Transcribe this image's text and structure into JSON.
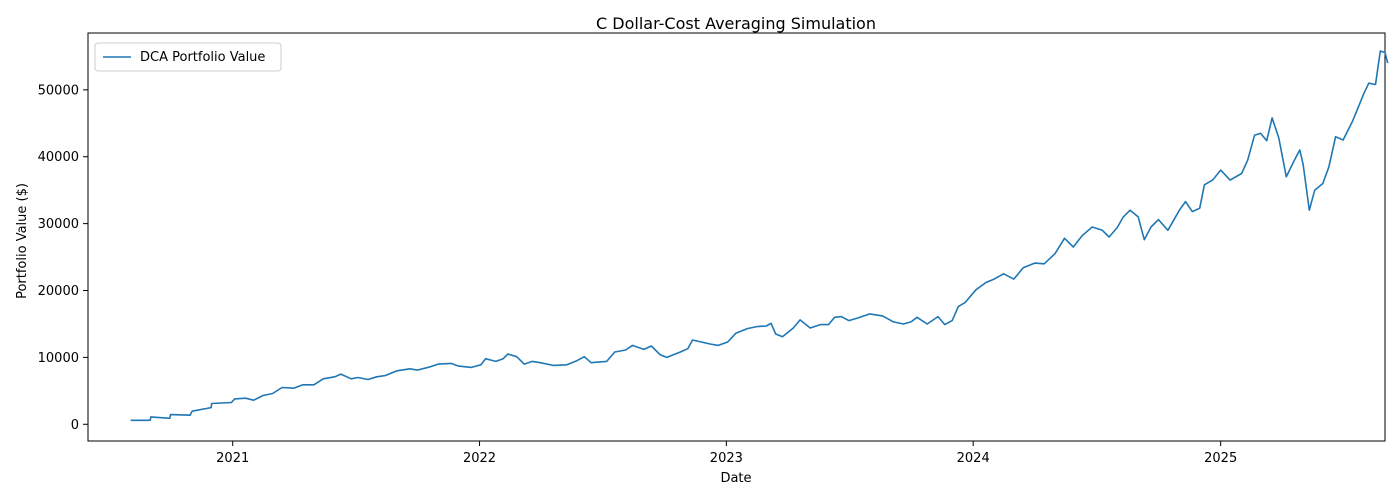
{
  "chart_data": {
    "type": "line",
    "title": "C Dollar-Cost Averaging Simulation",
    "xlabel": "Date",
    "ylabel": "Portfolio Value ($)",
    "x_type": "date",
    "xlim": [
      "2020-06-01",
      "2025-09-01"
    ],
    "ylim": [
      -2500,
      58500
    ],
    "x_ticks": [
      "2021",
      "2022",
      "2023",
      "2024",
      "2025"
    ],
    "x_tick_dates": [
      "2021-01-01",
      "2022-01-01",
      "2023-01-01",
      "2024-01-01",
      "2025-01-01"
    ],
    "y_ticks": [
      0,
      10000,
      20000,
      30000,
      40000,
      50000
    ],
    "y_tick_labels": [
      "0",
      "10000",
      "20000",
      "30000",
      "40000",
      "50000"
    ],
    "grid": false,
    "legend": {
      "position": "top-left",
      "entries": [
        "DCA Portfolio Value"
      ]
    },
    "series": [
      {
        "name": "DCA Portfolio Value",
        "color": "#1f77b4",
        "points": [
          [
            "2020-08-03",
            600
          ],
          [
            "2020-09-01",
            600
          ],
          [
            "2020-09-02",
            1100
          ],
          [
            "2020-09-30",
            900
          ],
          [
            "2020-10-01",
            1450
          ],
          [
            "2020-10-30",
            1350
          ],
          [
            "2020-11-02",
            1950
          ],
          [
            "2020-11-30",
            2500
          ],
          [
            "2020-12-01",
            3100
          ],
          [
            "2020-12-30",
            3250
          ],
          [
            "2021-01-04",
            3800
          ],
          [
            "2021-01-20",
            3900
          ],
          [
            "2021-02-01",
            3600
          ],
          [
            "2021-02-15",
            4300
          ],
          [
            "2021-03-01",
            4600
          ],
          [
            "2021-03-15",
            5500
          ],
          [
            "2021-04-01",
            5400
          ],
          [
            "2021-04-15",
            5900
          ],
          [
            "2021-05-01",
            5900
          ],
          [
            "2021-05-15",
            6800
          ],
          [
            "2021-06-01",
            7100
          ],
          [
            "2021-06-10",
            7500
          ],
          [
            "2021-06-25",
            6800
          ],
          [
            "2021-07-05",
            7000
          ],
          [
            "2021-07-20",
            6700
          ],
          [
            "2021-08-02",
            7100
          ],
          [
            "2021-08-15",
            7300
          ],
          [
            "2021-09-01",
            8000
          ],
          [
            "2021-09-20",
            8300
          ],
          [
            "2021-10-01",
            8100
          ],
          [
            "2021-10-20",
            8600
          ],
          [
            "2021-11-01",
            9000
          ],
          [
            "2021-11-20",
            9100
          ],
          [
            "2021-12-01",
            8700
          ],
          [
            "2021-12-20",
            8500
          ],
          [
            "2022-01-03",
            8900
          ],
          [
            "2022-01-10",
            9800
          ],
          [
            "2022-01-25",
            9400
          ],
          [
            "2022-02-05",
            9800
          ],
          [
            "2022-02-12",
            10500
          ],
          [
            "2022-02-25",
            10100
          ],
          [
            "2022-03-08",
            9000
          ],
          [
            "2022-03-20",
            9400
          ],
          [
            "2022-04-01",
            9200
          ],
          [
            "2022-04-20",
            8800
          ],
          [
            "2022-05-10",
            8900
          ],
          [
            "2022-05-25",
            9500
          ],
          [
            "2022-06-05",
            10100
          ],
          [
            "2022-06-15",
            9200
          ],
          [
            "2022-06-25",
            9300
          ],
          [
            "2022-07-08",
            9400
          ],
          [
            "2022-07-20",
            10800
          ],
          [
            "2022-08-05",
            11100
          ],
          [
            "2022-08-15",
            11800
          ],
          [
            "2022-09-01",
            11200
          ],
          [
            "2022-09-12",
            11700
          ],
          [
            "2022-09-25",
            10400
          ],
          [
            "2022-10-05",
            10000
          ],
          [
            "2022-10-25",
            10800
          ],
          [
            "2022-11-05",
            11300
          ],
          [
            "2022-11-12",
            12600
          ],
          [
            "2022-11-25",
            12300
          ],
          [
            "2022-12-08",
            12000
          ],
          [
            "2022-12-20",
            11800
          ],
          [
            "2023-01-03",
            12300
          ],
          [
            "2023-01-15",
            13600
          ],
          [
            "2023-02-01",
            14300
          ],
          [
            "2023-02-15",
            14600
          ],
          [
            "2023-03-01",
            14700
          ],
          [
            "2023-03-08",
            15100
          ],
          [
            "2023-03-15",
            13500
          ],
          [
            "2023-03-25",
            13100
          ],
          [
            "2023-04-10",
            14400
          ],
          [
            "2023-04-20",
            15600
          ],
          [
            "2023-05-05",
            14400
          ],
          [
            "2023-05-20",
            14900
          ],
          [
            "2023-06-01",
            14900
          ],
          [
            "2023-06-10",
            16000
          ],
          [
            "2023-06-20",
            16100
          ],
          [
            "2023-07-01",
            15500
          ],
          [
            "2023-07-15",
            15900
          ],
          [
            "2023-08-01",
            16500
          ],
          [
            "2023-08-20",
            16200
          ],
          [
            "2023-09-05",
            15300
          ],
          [
            "2023-09-20",
            15000
          ],
          [
            "2023-10-01",
            15300
          ],
          [
            "2023-10-10",
            16000
          ],
          [
            "2023-10-25",
            15000
          ],
          [
            "2023-11-10",
            16100
          ],
          [
            "2023-11-20",
            14900
          ],
          [
            "2023-12-01",
            15500
          ],
          [
            "2023-12-10",
            17600
          ],
          [
            "2023-12-20",
            18200
          ],
          [
            "2024-01-05",
            20100
          ],
          [
            "2024-01-20",
            21200
          ],
          [
            "2024-02-01",
            21700
          ],
          [
            "2024-02-15",
            22500
          ],
          [
            "2024-03-01",
            21700
          ],
          [
            "2024-03-15",
            23400
          ],
          [
            "2024-04-01",
            24100
          ],
          [
            "2024-04-15",
            24000
          ],
          [
            "2024-05-01",
            25500
          ],
          [
            "2024-05-15",
            27800
          ],
          [
            "2024-05-28",
            26500
          ],
          [
            "2024-06-10",
            28200
          ],
          [
            "2024-06-25",
            29500
          ],
          [
            "2024-07-10",
            29000
          ],
          [
            "2024-07-20",
            28000
          ],
          [
            "2024-08-01",
            29400
          ],
          [
            "2024-08-10",
            31000
          ],
          [
            "2024-08-20",
            32000
          ],
          [
            "2024-09-01",
            31000
          ],
          [
            "2024-09-10",
            27600
          ],
          [
            "2024-09-20",
            29500
          ],
          [
            "2024-10-01",
            30600
          ],
          [
            "2024-10-15",
            29000
          ],
          [
            "2024-11-01",
            32000
          ],
          [
            "2024-11-10",
            33300
          ],
          [
            "2024-11-20",
            31800
          ],
          [
            "2024-12-01",
            32300
          ],
          [
            "2024-12-08",
            35800
          ],
          [
            "2024-12-20",
            36500
          ],
          [
            "2025-01-01",
            38000
          ],
          [
            "2025-01-15",
            36500
          ],
          [
            "2025-02-01",
            37500
          ],
          [
            "2025-02-10",
            39500
          ],
          [
            "2025-02-20",
            43200
          ],
          [
            "2025-03-01",
            43500
          ],
          [
            "2025-03-10",
            42400
          ],
          [
            "2025-03-18",
            45800
          ],
          [
            "2025-03-28",
            42800
          ],
          [
            "2025-04-08",
            37000
          ],
          [
            "2025-04-20",
            39500
          ],
          [
            "2025-04-28",
            41000
          ],
          [
            "2025-05-03",
            38800
          ],
          [
            "2025-05-12",
            32000
          ],
          [
            "2025-05-20",
            35000
          ],
          [
            "2025-06-01",
            36000
          ],
          [
            "2025-06-10",
            38500
          ],
          [
            "2025-06-20",
            43000
          ],
          [
            "2025-07-01",
            42500
          ],
          [
            "2025-07-15",
            45300
          ],
          [
            "2025-08-01",
            49500
          ],
          [
            "2025-08-08",
            51000
          ],
          [
            "2025-08-18",
            50800
          ],
          [
            "2025-08-25",
            55800
          ],
          [
            "2025-09-01",
            55600
          ],
          [
            "2025-09-05",
            54000
          ]
        ]
      }
    ]
  }
}
